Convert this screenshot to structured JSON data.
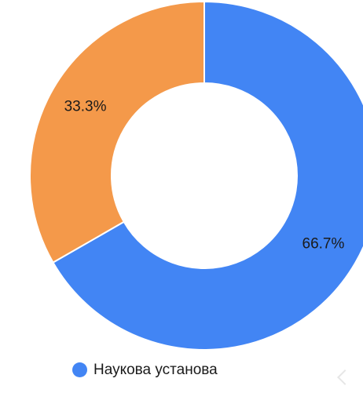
{
  "chart_data": {
    "type": "pie",
    "donut": true,
    "slices": [
      {
        "value": 66.7,
        "label": "66.7%",
        "color": "#4285f4"
      },
      {
        "value": 33.3,
        "label": "33.3%",
        "color": "#f4994a"
      }
    ],
    "legend": [
      {
        "name": "Наукова установа",
        "color": "#4285f4"
      }
    ],
    "legend_position": "bottom-left"
  }
}
